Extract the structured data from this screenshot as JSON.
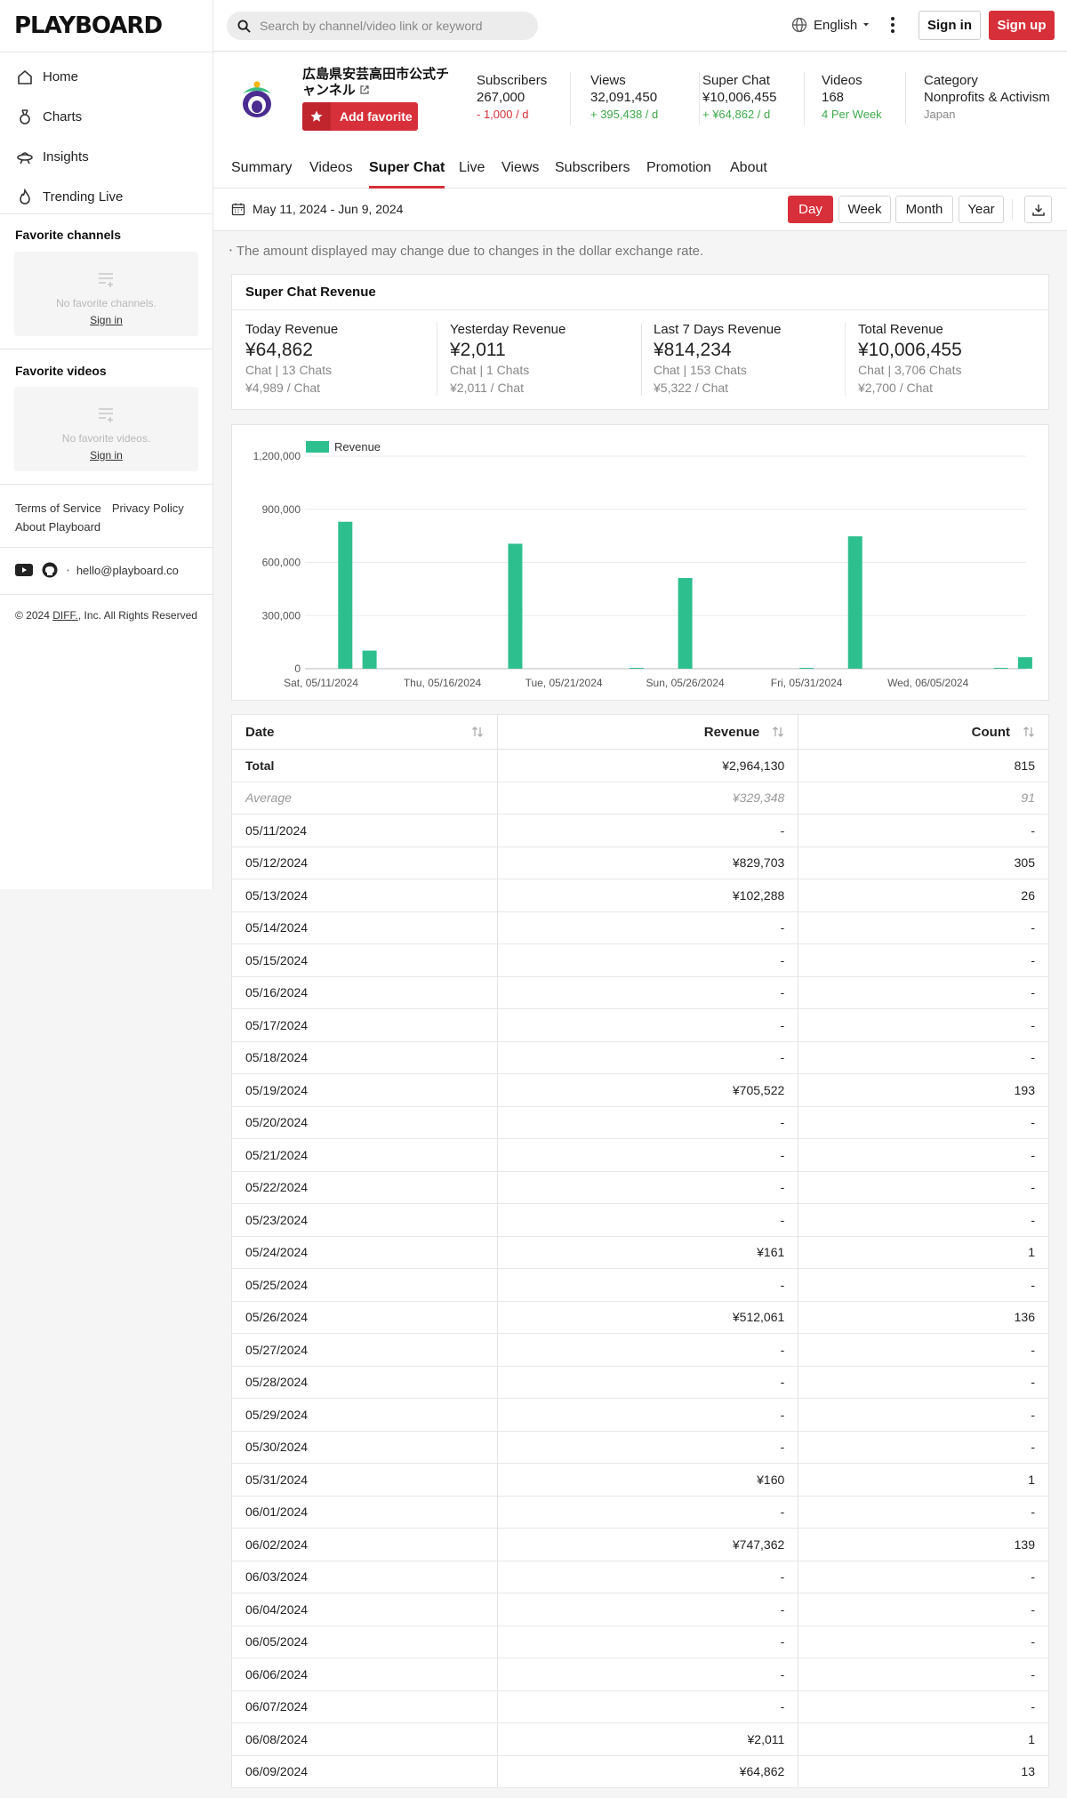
{
  "app": {
    "logo": "PLAYBOARD"
  },
  "nav": [
    {
      "label": "Home",
      "icon": "home-icon"
    },
    {
      "label": "Charts",
      "icon": "medal-icon"
    },
    {
      "label": "Insights",
      "icon": "ufo-icon"
    },
    {
      "label": "Trending Live",
      "icon": "flame-icon"
    }
  ],
  "sidebar": {
    "fav_channels_title": "Favorite channels",
    "fav_channels_empty": "No favorite channels.",
    "fav_videos_title": "Favorite videos",
    "fav_videos_empty": "No favorite videos.",
    "sign_in": "Sign in",
    "terms": "Terms of Service",
    "privacy": "Privacy Policy",
    "about": "About Playboard",
    "email": "hello@playboard.co",
    "copyright_pre": "© 2024 ",
    "copyright_link": "DIFF.",
    "copyright_post": ", Inc. All Rights Reserved"
  },
  "header": {
    "search_placeholder": "Search by channel/video link or keyword",
    "language": "English",
    "sign_in": "Sign in",
    "sign_up": "Sign up"
  },
  "channel": {
    "name": "広島県安芸高田市公式チャンネル",
    "add_favorite": "Add favorite",
    "stats": [
      {
        "label": "Subscribers",
        "value": "267,000",
        "delta": "- 1,000 / d",
        "delta_color": "red"
      },
      {
        "label": "Views",
        "value": "32,091,450",
        "delta": "+ 395,438 / d",
        "delta_color": "green"
      },
      {
        "label": "Super Chat",
        "value": "¥10,006,455",
        "delta": "+ ¥64,862 / d",
        "delta_color": "green"
      },
      {
        "label": "Videos",
        "value": "168",
        "delta": "4 Per Week",
        "delta_color": "green"
      },
      {
        "label": "Category",
        "value": "Nonprofits & Activism",
        "delta": "Japan",
        "delta_color": "grey"
      }
    ]
  },
  "tabs": [
    "Summary",
    "Videos",
    "Super Chat",
    "Live",
    "Views",
    "Subscribers",
    "Promotion",
    "About"
  ],
  "active_tab": "Super Chat",
  "toolbar": {
    "date_range": "May 11, 2024 - Jun 9, 2024",
    "periods": [
      "Day",
      "Week",
      "Month",
      "Year"
    ],
    "active_period": "Day"
  },
  "notice": "The amount displayed may change due to changes in the dollar exchange rate.",
  "revenue_card": {
    "title": "Super Chat Revenue",
    "items": [
      {
        "label": "Today Revenue",
        "value": "¥64,862",
        "chats": "Chat | 13 Chats",
        "per_chat": "¥4,989 / Chat"
      },
      {
        "label": "Yesterday Revenue",
        "value": "¥2,011",
        "chats": "Chat | 1 Chats",
        "per_chat": "¥2,011 / Chat"
      },
      {
        "label": "Last 7 Days Revenue",
        "value": "¥814,234",
        "chats": "Chat | 153 Chats",
        "per_chat": "¥5,322 / Chat"
      },
      {
        "label": "Total Revenue",
        "value": "¥10,006,455",
        "chats": "Chat | 3,706 Chats",
        "per_chat": "¥2,700 / Chat"
      }
    ]
  },
  "colors": {
    "accent": "#d7303a",
    "bar": "#2ebf8e",
    "positive": "#3ea84b"
  },
  "chart_data": {
    "type": "bar",
    "legend": "Revenue",
    "legend_position": "top-left",
    "grid": true,
    "ylim": [
      0,
      1200000
    ],
    "yticks": [
      "0",
      "300,000",
      "600,000",
      "900,000",
      "1,200,000"
    ],
    "xtick_labels": [
      "Sat, 05/11/2024",
      "Thu, 05/16/2024",
      "Tue, 05/21/2024",
      "Sun, 05/26/2024",
      "Fri, 05/31/2024",
      "Wed, 06/05/2024"
    ],
    "categories": [
      "05/11",
      "05/12",
      "05/13",
      "05/14",
      "05/15",
      "05/16",
      "05/17",
      "05/18",
      "05/19",
      "05/20",
      "05/21",
      "05/22",
      "05/23",
      "05/24",
      "05/25",
      "05/26",
      "05/27",
      "05/28",
      "05/29",
      "05/30",
      "05/31",
      "06/01",
      "06/02",
      "06/03",
      "06/04",
      "06/05",
      "06/06",
      "06/07",
      "06/08",
      "06/09"
    ],
    "values": [
      0,
      829703,
      102288,
      0,
      0,
      0,
      0,
      0,
      705522,
      0,
      0,
      0,
      0,
      161,
      0,
      512061,
      0,
      0,
      0,
      0,
      160,
      0,
      747362,
      0,
      0,
      0,
      0,
      0,
      2011,
      64862
    ]
  },
  "table": {
    "headers": [
      "Date",
      "Revenue",
      "Count"
    ],
    "total": [
      "Total",
      "¥2,964,130",
      "815"
    ],
    "average": [
      "Average",
      "¥329,348",
      "91"
    ],
    "rows": [
      [
        "05/11/2024",
        "-",
        "-"
      ],
      [
        "05/12/2024",
        "¥829,703",
        "305"
      ],
      [
        "05/13/2024",
        "¥102,288",
        "26"
      ],
      [
        "05/14/2024",
        "-",
        "-"
      ],
      [
        "05/15/2024",
        "-",
        "-"
      ],
      [
        "05/16/2024",
        "-",
        "-"
      ],
      [
        "05/17/2024",
        "-",
        "-"
      ],
      [
        "05/18/2024",
        "-",
        "-"
      ],
      [
        "05/19/2024",
        "¥705,522",
        "193"
      ],
      [
        "05/20/2024",
        "-",
        "-"
      ],
      [
        "05/21/2024",
        "-",
        "-"
      ],
      [
        "05/22/2024",
        "-",
        "-"
      ],
      [
        "05/23/2024",
        "-",
        "-"
      ],
      [
        "05/24/2024",
        "¥161",
        "1"
      ],
      [
        "05/25/2024",
        "-",
        "-"
      ],
      [
        "05/26/2024",
        "¥512,061",
        "136"
      ],
      [
        "05/27/2024",
        "-",
        "-"
      ],
      [
        "05/28/2024",
        "-",
        "-"
      ],
      [
        "05/29/2024",
        "-",
        "-"
      ],
      [
        "05/30/2024",
        "-",
        "-"
      ],
      [
        "05/31/2024",
        "¥160",
        "1"
      ],
      [
        "06/01/2024",
        "-",
        "-"
      ],
      [
        "06/02/2024",
        "¥747,362",
        "139"
      ],
      [
        "06/03/2024",
        "-",
        "-"
      ],
      [
        "06/04/2024",
        "-",
        "-"
      ],
      [
        "06/05/2024",
        "-",
        "-"
      ],
      [
        "06/06/2024",
        "-",
        "-"
      ],
      [
        "06/07/2024",
        "-",
        "-"
      ],
      [
        "06/08/2024",
        "¥2,011",
        "1"
      ],
      [
        "06/09/2024",
        "¥64,862",
        "13"
      ]
    ]
  }
}
